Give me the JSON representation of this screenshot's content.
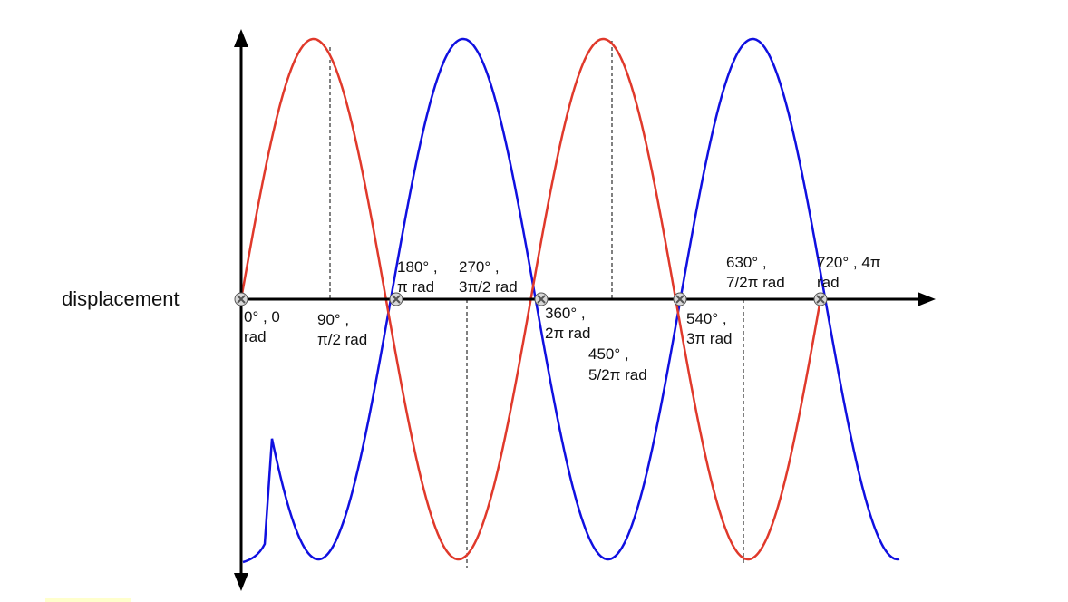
{
  "diagram": {
    "y_label": "displacement",
    "colors": {
      "axis": "#000000",
      "red_wave": "#e0392b",
      "blue_wave": "#1010e0",
      "marker_fill": "#d8d8d8",
      "marker_stroke": "#555555",
      "guide": "#000000",
      "corner_highlight": "#ffffcc"
    },
    "markers": [
      {
        "label_lines": [
          "0° , 0",
          "rad"
        ]
      },
      {
        "label_lines": [
          "180° ,",
          "π rad"
        ]
      },
      {
        "label_lines": [
          "360° ,",
          "2π rad"
        ]
      },
      {
        "label_lines": [
          "540° ,",
          "3π rad"
        ]
      },
      {
        "label_lines": [
          "720° , 4π",
          "rad"
        ]
      }
    ],
    "guide_labels": [
      {
        "label_lines": [
          "90° ,",
          "π/2 rad"
        ]
      },
      {
        "label_lines": [
          "270° ,",
          "3π/2 rad"
        ]
      },
      {
        "label_lines": [
          "450° ,",
          "5/2π rad"
        ]
      },
      {
        "label_lines": [
          "630° ,",
          "7/2π rad"
        ]
      }
    ]
  }
}
